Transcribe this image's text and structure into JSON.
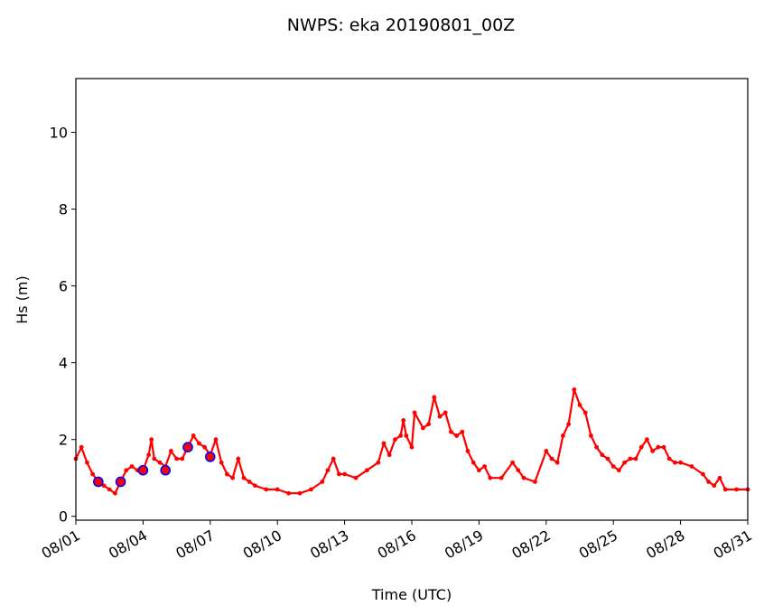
{
  "chart_data": {
    "type": "line",
    "title": "NWPS: eka 20190801_00Z",
    "xlabel": "Time (UTC)",
    "ylabel": "Hs (m)",
    "x_start": "2019-08-01",
    "x_end": "2019-08-31",
    "ylim": [
      -0.1,
      11.4
    ],
    "x_ticks": [
      "2019-08-01",
      "2019-08-04",
      "2019-08-07",
      "2019-08-10",
      "2019-08-13",
      "2019-08-16",
      "2019-08-19",
      "2019-08-22",
      "2019-08-25",
      "2019-08-28",
      "2019-08-31"
    ],
    "x_tick_labels": [
      "08/01",
      "08/04",
      "08/07",
      "08/10",
      "08/13",
      "08/16",
      "08/19",
      "08/22",
      "08/25",
      "08/28",
      "08/31"
    ],
    "y_ticks": [
      0,
      2,
      4,
      6,
      8,
      10
    ],
    "y_tick_labels": [
      "0",
      "2",
      "4",
      "6",
      "8",
      "10"
    ],
    "grid": false,
    "legend": "none",
    "colors": {
      "model": "#ff0000",
      "obs_edge": "#0000ff",
      "obs_fill": "#ff0000"
    },
    "series": [
      {
        "marker": "dot",
        "points": [
          [
            "2019-08-01 00:00",
            1.5
          ],
          [
            "2019-08-01 06:00",
            1.8
          ],
          [
            "2019-08-01 12:00",
            1.4
          ],
          [
            "2019-08-01 18:00",
            1.1
          ],
          [
            "2019-08-02 00:00",
            0.9
          ],
          [
            "2019-08-02 06:00",
            0.8
          ],
          [
            "2019-08-02 12:00",
            0.7
          ],
          [
            "2019-08-02 18:00",
            0.6
          ],
          [
            "2019-08-03 00:00",
            0.9
          ],
          [
            "2019-08-03 06:00",
            1.2
          ],
          [
            "2019-08-03 12:00",
            1.3
          ],
          [
            "2019-08-03 18:00",
            1.2
          ],
          [
            "2019-08-04 00:00",
            1.2
          ],
          [
            "2019-08-04 06:00",
            1.6
          ],
          [
            "2019-08-04 09:00",
            2.0
          ],
          [
            "2019-08-04 12:00",
            1.5
          ],
          [
            "2019-08-04 18:00",
            1.4
          ],
          [
            "2019-08-05 00:00",
            1.3
          ],
          [
            "2019-08-05 06:00",
            1.7
          ],
          [
            "2019-08-05 12:00",
            1.5
          ],
          [
            "2019-08-05 18:00",
            1.5
          ],
          [
            "2019-08-06 00:00",
            1.8
          ],
          [
            "2019-08-06 06:00",
            2.1
          ],
          [
            "2019-08-06 12:00",
            1.9
          ],
          [
            "2019-08-06 18:00",
            1.8
          ],
          [
            "2019-08-07 00:00",
            1.6
          ],
          [
            "2019-08-07 06:00",
            2.0
          ],
          [
            "2019-08-07 12:00",
            1.4
          ],
          [
            "2019-08-07 18:00",
            1.1
          ],
          [
            "2019-08-08 00:00",
            1.0
          ],
          [
            "2019-08-08 06:00",
            1.5
          ],
          [
            "2019-08-08 12:00",
            1.0
          ],
          [
            "2019-08-08 18:00",
            0.9
          ],
          [
            "2019-08-09 00:00",
            0.8
          ],
          [
            "2019-08-09 12:00",
            0.7
          ],
          [
            "2019-08-10 00:00",
            0.7
          ],
          [
            "2019-08-10 12:00",
            0.6
          ],
          [
            "2019-08-11 00:00",
            0.6
          ],
          [
            "2019-08-11 12:00",
            0.7
          ],
          [
            "2019-08-12 00:00",
            0.9
          ],
          [
            "2019-08-12 06:00",
            1.2
          ],
          [
            "2019-08-12 12:00",
            1.5
          ],
          [
            "2019-08-12 18:00",
            1.1
          ],
          [
            "2019-08-13 00:00",
            1.1
          ],
          [
            "2019-08-13 12:00",
            1.0
          ],
          [
            "2019-08-14 00:00",
            1.2
          ],
          [
            "2019-08-14 12:00",
            1.4
          ],
          [
            "2019-08-14 18:00",
            1.9
          ],
          [
            "2019-08-15 00:00",
            1.6
          ],
          [
            "2019-08-15 06:00",
            2.0
          ],
          [
            "2019-08-15 12:00",
            2.1
          ],
          [
            "2019-08-15 15:00",
            2.5
          ],
          [
            "2019-08-15 18:00",
            2.1
          ],
          [
            "2019-08-16 00:00",
            1.8
          ],
          [
            "2019-08-16 03:00",
            2.7
          ],
          [
            "2019-08-16 12:00",
            2.3
          ],
          [
            "2019-08-16 18:00",
            2.4
          ],
          [
            "2019-08-17 00:00",
            3.1
          ],
          [
            "2019-08-17 06:00",
            2.6
          ],
          [
            "2019-08-17 12:00",
            2.7
          ],
          [
            "2019-08-17 18:00",
            2.2
          ],
          [
            "2019-08-18 00:00",
            2.1
          ],
          [
            "2019-08-18 06:00",
            2.2
          ],
          [
            "2019-08-18 12:00",
            1.7
          ],
          [
            "2019-08-18 18:00",
            1.4
          ],
          [
            "2019-08-19 00:00",
            1.2
          ],
          [
            "2019-08-19 06:00",
            1.3
          ],
          [
            "2019-08-19 12:00",
            1.0
          ],
          [
            "2019-08-20 00:00",
            1.0
          ],
          [
            "2019-08-20 12:00",
            1.4
          ],
          [
            "2019-08-20 18:00",
            1.2
          ],
          [
            "2019-08-21 00:00",
            1.0
          ],
          [
            "2019-08-21 12:00",
            0.9
          ],
          [
            "2019-08-22 00:00",
            1.7
          ],
          [
            "2019-08-22 06:00",
            1.5
          ],
          [
            "2019-08-22 12:00",
            1.4
          ],
          [
            "2019-08-22 18:00",
            2.1
          ],
          [
            "2019-08-23 00:00",
            2.4
          ],
          [
            "2019-08-23 06:00",
            3.3
          ],
          [
            "2019-08-23 12:00",
            2.9
          ],
          [
            "2019-08-23 18:00",
            2.7
          ],
          [
            "2019-08-24 00:00",
            2.1
          ],
          [
            "2019-08-24 06:00",
            1.8
          ],
          [
            "2019-08-24 12:00",
            1.6
          ],
          [
            "2019-08-24 18:00",
            1.5
          ],
          [
            "2019-08-25 00:00",
            1.3
          ],
          [
            "2019-08-25 06:00",
            1.2
          ],
          [
            "2019-08-25 12:00",
            1.4
          ],
          [
            "2019-08-25 18:00",
            1.5
          ],
          [
            "2019-08-26 00:00",
            1.5
          ],
          [
            "2019-08-26 06:00",
            1.8
          ],
          [
            "2019-08-26 12:00",
            2.0
          ],
          [
            "2019-08-26 18:00",
            1.7
          ],
          [
            "2019-08-27 00:00",
            1.8
          ],
          [
            "2019-08-27 06:00",
            1.8
          ],
          [
            "2019-08-27 12:00",
            1.5
          ],
          [
            "2019-08-27 18:00",
            1.4
          ],
          [
            "2019-08-28 00:00",
            1.4
          ],
          [
            "2019-08-28 12:00",
            1.3
          ],
          [
            "2019-08-29 00:00",
            1.1
          ],
          [
            "2019-08-29 06:00",
            0.9
          ],
          [
            "2019-08-29 12:00",
            0.8
          ],
          [
            "2019-08-29 18:00",
            1.0
          ],
          [
            "2019-08-30 00:00",
            0.7
          ],
          [
            "2019-08-30 12:00",
            0.7
          ],
          [
            "2019-08-31 00:00",
            0.7
          ]
        ]
      },
      {
        "marker": "circle",
        "points": [
          [
            "2019-08-02 00:00",
            0.9
          ],
          [
            "2019-08-03 00:00",
            0.9
          ],
          [
            "2019-08-04 00:00",
            1.2
          ],
          [
            "2019-08-05 00:00",
            1.2
          ],
          [
            "2019-08-06 00:00",
            1.8
          ],
          [
            "2019-08-07 00:00",
            1.55
          ]
        ]
      }
    ]
  }
}
